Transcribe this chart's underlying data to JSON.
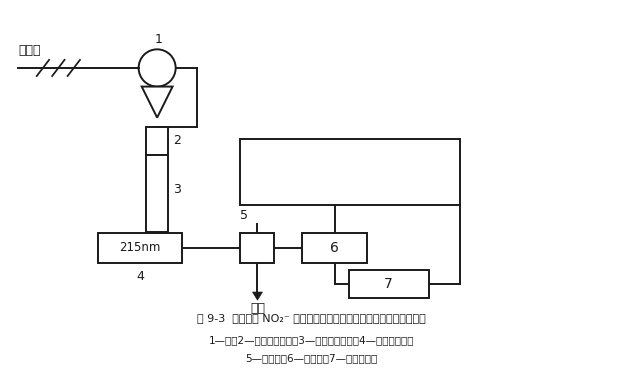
{
  "title_line1": "图 9-3  同时检测 NO₂⁻ 和其他阴离子时电导和紫外两种检测器的联接",
  "title_line2": "1—泵；2—阴离子保护柱；3—阴离子分离柱；4—紫外检测器；",
  "title_line3": "5—抑制器；6—电导池；7—电导检测器",
  "label_rinse": "淋洗液",
  "label_1": "1",
  "label_2": "2",
  "label_3": "3",
  "label_4": "4",
  "label_5": "5",
  "label_6": "6",
  "label_7": "7",
  "label_215nm": "215nm",
  "label_waste": "废液",
  "bg_color": "#ffffff",
  "line_color": "#1a1a1a",
  "box_color": "#ffffff"
}
